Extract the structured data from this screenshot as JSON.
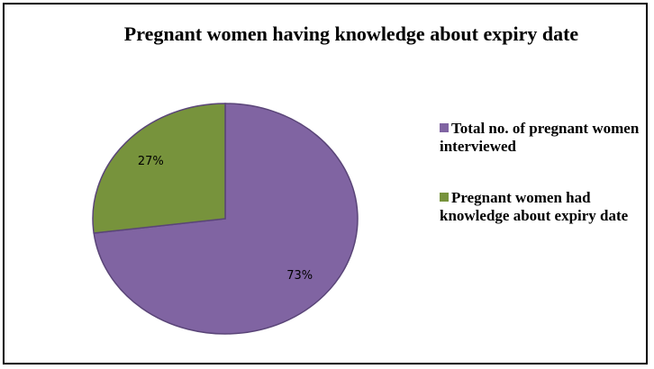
{
  "chart_data": {
    "type": "pie",
    "title": "Pregnant women having knowledge about expiry date",
    "categories": [
      "Total no. of pregnant women interviewed",
      "Pregnant women had knowledge about expiry date"
    ],
    "values": [
      73,
      27
    ],
    "value_labels": [
      "73%",
      "27%"
    ],
    "colors": [
      "#8064a2",
      "#77933c"
    ],
    "legend": "right"
  }
}
